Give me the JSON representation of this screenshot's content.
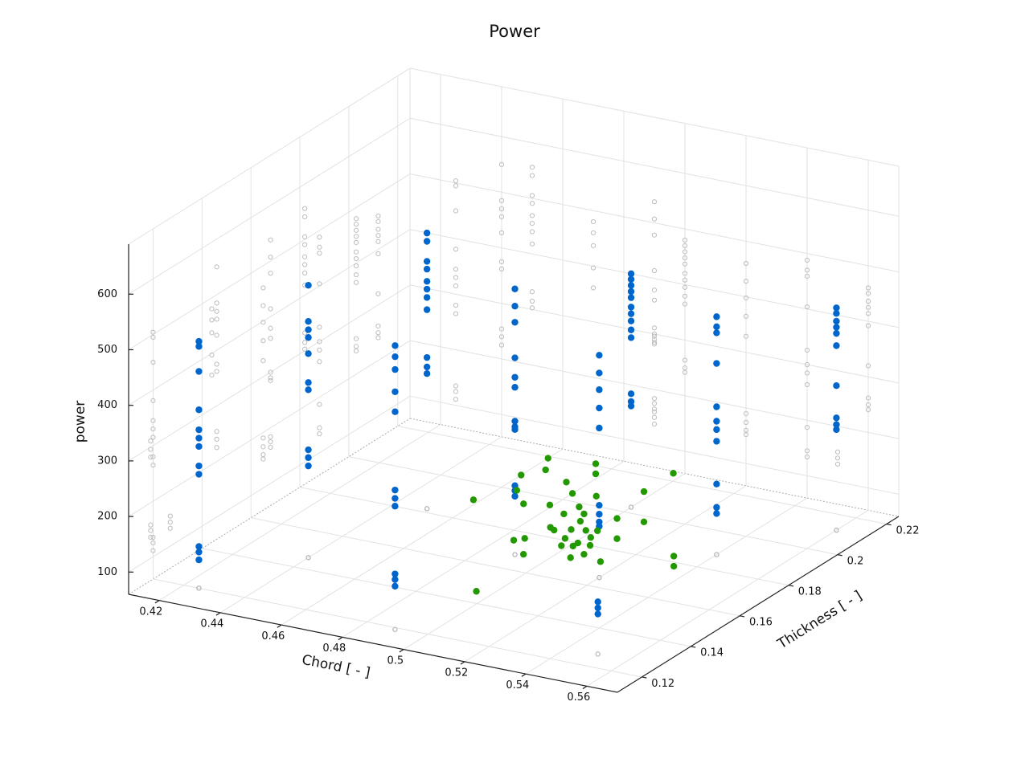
{
  "chart_data": {
    "type": "scatter3d",
    "title": "Power",
    "xlabel": "Chord [ - ]",
    "ylabel": "Thickness [ - ]",
    "zlabel": "power",
    "xlim": [
      0.41,
      0.57
    ],
    "ylim": [
      0.11,
      0.225
    ],
    "zlim": [
      60,
      690
    ],
    "xticks": [
      0.42,
      0.44,
      0.46,
      0.48,
      0.5,
      0.52,
      0.54,
      0.56
    ],
    "yticks": [
      0.12,
      0.14,
      0.16,
      0.18,
      0.2,
      0.22
    ],
    "zticks": [
      100,
      200,
      300,
      400,
      500,
      600
    ],
    "grid": true,
    "projections": true,
    "projection_color": "#bdbdbd",
    "series": [
      {
        "color": "#0066cc",
        "x": [
          0.425,
          0.425,
          0.425,
          0.425,
          0.425,
          0.425,
          0.425,
          0.425,
          0.425,
          0.425,
          0.425,
          0.425,
          0.44,
          0.44,
          0.44,
          0.44,
          0.44,
          0.44,
          0.44,
          0.44,
          0.44,
          0.44,
          0.47,
          0.47,
          0.47,
          0.47,
          0.47,
          0.49,
          0.49,
          0.49,
          0.49,
          0.49,
          0.49,
          0.45,
          0.45,
          0.45,
          0.45,
          0.45,
          0.45,
          0.45,
          0.45,
          0.45,
          0.45,
          0.45,
          0.49,
          0.49,
          0.49,
          0.49,
          0.49,
          0.49,
          0.49,
          0.49,
          0.49,
          0.49,
          0.49,
          0.49,
          0.52,
          0.52,
          0.52,
          0.52,
          0.52,
          0.52,
          0.52,
          0.52,
          0.52,
          0.55,
          0.55,
          0.55,
          0.5,
          0.5,
          0.5,
          0.5,
          0.5,
          0.5,
          0.5,
          0.5,
          0.5,
          0.5,
          0.5,
          0.5,
          0.5,
          0.54,
          0.54,
          0.54,
          0.54,
          0.54,
          0.54,
          0.54,
          0.54,
          0.54,
          0.54,
          0.54,
          0.56,
          0.56,
          0.56,
          0.56,
          0.56,
          0.56,
          0.56,
          0.56,
          0.56,
          0.56
        ],
        "y": [
          0.12,
          0.12,
          0.12,
          0.12,
          0.12,
          0.12,
          0.12,
          0.12,
          0.12,
          0.12,
          0.12,
          0.12,
          0.146,
          0.146,
          0.146,
          0.146,
          0.146,
          0.146,
          0.146,
          0.146,
          0.146,
          0.146,
          0.144,
          0.144,
          0.144,
          0.144,
          0.144,
          0.119,
          0.119,
          0.119,
          0.119,
          0.119,
          0.119,
          0.182,
          0.182,
          0.182,
          0.182,
          0.182,
          0.182,
          0.182,
          0.182,
          0.182,
          0.182,
          0.182,
          0.168,
          0.168,
          0.168,
          0.168,
          0.168,
          0.168,
          0.168,
          0.168,
          0.168,
          0.168,
          0.168,
          0.168,
          0.165,
          0.165,
          0.165,
          0.165,
          0.165,
          0.165,
          0.165,
          0.165,
          0.165,
          0.127,
          0.127,
          0.127,
          0.203,
          0.203,
          0.203,
          0.203,
          0.203,
          0.203,
          0.203,
          0.203,
          0.203,
          0.203,
          0.203,
          0.203,
          0.203,
          0.188,
          0.188,
          0.188,
          0.188,
          0.188,
          0.188,
          0.188,
          0.188,
          0.188,
          0.188,
          0.188,
          0.212,
          0.212,
          0.212,
          0.212,
          0.212,
          0.212,
          0.212,
          0.212,
          0.212,
          0.212
        ],
        "z": [
          504,
          495,
          450,
          381,
          345,
          330,
          315,
          280,
          265,
          135,
          125,
          111,
          550,
          485,
          470,
          456,
          427,
          375,
          362,
          254,
          240,
          225,
          480,
          460,
          437,
          397,
          361,
          311,
          296,
          282,
          160,
          150,
          138,
          556,
          541,
          505,
          491,
          469,
          455,
          440,
          418,
          332,
          315,
          303,
          538,
          507,
          478,
          414,
          379,
          361,
          300,
          290,
          285,
          184,
          175,
          165,
          460,
          428,
          398,
          365,
          329,
          190,
          174,
          160,
          152,
          154,
          143,
          132,
          480,
          470,
          459,
          448,
          437,
          420,
          408,
          395,
          379,
          365,
          264,
          250,
          242,
          488,
          470,
          459,
          404,
          326,
          300,
          285,
          264,
          187,
          145,
          134,
          460,
          450,
          436,
          425,
          414,
          392,
          320,
          262,
          250,
          241
        ]
      },
      {
        "color": "#229900",
        "x": [
          0.458,
          0.46,
          0.465,
          0.472,
          0.46,
          0.464,
          0.479,
          0.474,
          0.474,
          0.478,
          0.487,
          0.497,
          0.497,
          0.501,
          0.509,
          0.509,
          0.53,
          0.534,
          0.514,
          0.505,
          0.492,
          0.484,
          0.486,
          0.488,
          0.495,
          0.486,
          0.494,
          0.493,
          0.498,
          0.501,
          0.502,
          0.501,
          0.501,
          0.491,
          0.496,
          0.49,
          0.498,
          0.505,
          0.507,
          0.48,
          0.487
        ],
        "y": [
          0.191,
          0.208,
          0.2,
          0.194,
          0.219,
          0.213,
          0.196,
          0.209,
          0.221,
          0.216,
          0.205,
          0.212,
          0.224,
          0.196,
          0.186,
          0.197,
          0.183,
          0.178,
          0.173,
          0.172,
          0.169,
          0.175,
          0.177,
          0.185,
          0.146,
          0.193,
          0.186,
          0.191,
          0.187,
          0.18,
          0.184,
          0.188,
          0.178,
          0.195,
          0.181,
          0.184,
          0.177,
          0.18,
          0.175,
          0.204,
          0.198
        ]
      }
    ]
  }
}
